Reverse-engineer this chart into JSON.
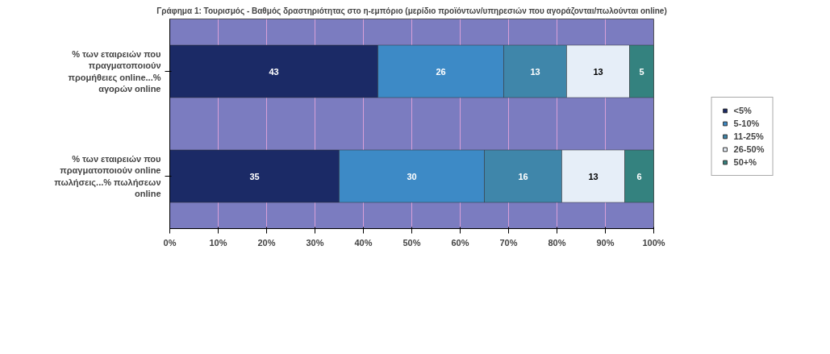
{
  "chart_data": {
    "type": "bar",
    "orientation": "horizontal",
    "stacked": true,
    "title": "Γράφημα 1: Τουρισμός - Βαθμός δραστηριότητας στο η-εμπόριο (μερίδιο προϊόντων/υπηρεσιών που αγοράζονται/πωλούνται online)",
    "categories": [
      "% των εταιρειών που πραγματοποιούν προμήθειες online...% αγορών online",
      "% των εταιρειών που πραγματοποιούν online πωλήσεις...% πωλήσεων online"
    ],
    "series": [
      {
        "name": "<5%",
        "color": "#1b2a66",
        "values": [
          43,
          35
        ]
      },
      {
        "name": "5-10%",
        "color": "#3d8ac6",
        "values": [
          26,
          30
        ]
      },
      {
        "name": "11-25%",
        "color": "#3f86aa",
        "values": [
          13,
          16
        ]
      },
      {
        "name": "26-50%",
        "color": "#e6eef8",
        "values": [
          13,
          13
        ]
      },
      {
        "name": "50+%",
        "color": "#34827f",
        "values": [
          5,
          6
        ]
      }
    ],
    "xlim": [
      0,
      100
    ],
    "xticks": [
      {
        "value": 0,
        "label": "0%"
      },
      {
        "value": 10,
        "label": "10%"
      },
      {
        "value": 20,
        "label": "20%"
      },
      {
        "value": 30,
        "label": "30%"
      },
      {
        "value": 40,
        "label": "40%"
      },
      {
        "value": 50,
        "label": "50%"
      },
      {
        "value": 60,
        "label": "60%"
      },
      {
        "value": 70,
        "label": "70%"
      },
      {
        "value": 80,
        "label": "80%"
      },
      {
        "value": 90,
        "label": "90%"
      },
      {
        "value": 100,
        "label": "100%"
      }
    ],
    "data_labels": true,
    "grid": "x",
    "legend": "right"
  }
}
